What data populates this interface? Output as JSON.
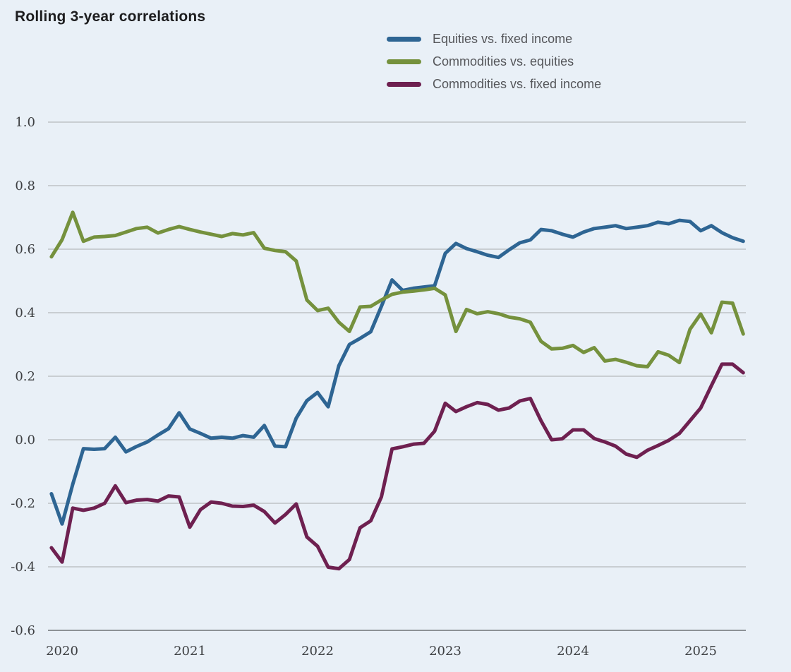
{
  "chart_data": {
    "type": "line",
    "title": "Rolling 3-year correlations",
    "background_color": "#e9f0f7",
    "gridline_color": "#a9abad",
    "axis_line_color": "#6f7276",
    "grid": true,
    "legend_position": "top-center-inside",
    "x_axis": {
      "tick_labels": [
        "2020",
        "2021",
        "2022",
        "2023",
        "2024",
        "2025"
      ],
      "tick_years": [
        2020,
        2021,
        2022,
        2023,
        2024,
        2025
      ]
    },
    "y_axis": {
      "tick_labels": [
        "1.0",
        "0.8",
        "0.6",
        "0.4",
        "0.2",
        "0.0",
        "-0.2",
        "-0.4",
        "-0.6"
      ],
      "tick_values": [
        1.0,
        0.8,
        0.6,
        0.4,
        0.2,
        0.0,
        -0.2,
        -0.4,
        -0.6
      ],
      "min": -0.6,
      "max": 1.0
    },
    "x_start_year": 2019.9167,
    "x_step_years": 0.08333,
    "series": [
      {
        "name": "Equities vs. fixed income",
        "color": "#2e6593",
        "values": [
          -0.17,
          -0.265,
          -0.14,
          -0.028,
          -0.03,
          -0.028,
          0.008,
          -0.038,
          -0.021,
          -0.007,
          0.015,
          0.035,
          0.085,
          0.034,
          0.02,
          0.005,
          0.008,
          0.005,
          0.013,
          0.008,
          0.045,
          -0.02,
          -0.022,
          0.068,
          0.123,
          0.149,
          0.104,
          0.233,
          0.3,
          0.319,
          0.34,
          0.42,
          0.503,
          0.47,
          0.477,
          0.481,
          0.485,
          0.587,
          0.618,
          0.602,
          0.592,
          0.581,
          0.574,
          0.598,
          0.62,
          0.629,
          0.662,
          0.658,
          0.647,
          0.638,
          0.654,
          0.665,
          0.669,
          0.674,
          0.665,
          0.669,
          0.674,
          0.685,
          0.68,
          0.691,
          0.687,
          0.658,
          0.674,
          0.652,
          0.636,
          0.625
        ]
      },
      {
        "name": "Commodities vs. equities",
        "color": "#75913d",
        "values": [
          0.576,
          0.63,
          0.716,
          0.625,
          0.638,
          0.64,
          0.643,
          0.654,
          0.665,
          0.669,
          0.651,
          0.662,
          0.671,
          0.662,
          0.654,
          0.647,
          0.64,
          0.649,
          0.645,
          0.652,
          0.603,
          0.596,
          0.592,
          0.563,
          0.44,
          0.407,
          0.414,
          0.37,
          0.341,
          0.418,
          0.42,
          0.44,
          0.458,
          0.465,
          0.468,
          0.472,
          0.477,
          0.456,
          0.341,
          0.41,
          0.397,
          0.403,
          0.397,
          0.386,
          0.381,
          0.37,
          0.31,
          0.286,
          0.288,
          0.297,
          0.275,
          0.29,
          0.248,
          0.253,
          0.244,
          0.233,
          0.23,
          0.277,
          0.266,
          0.243,
          0.348,
          0.396,
          0.337,
          0.433,
          0.43,
          0.333
        ]
      },
      {
        "name": "Commodities vs. fixed income",
        "color": "#6e2050",
        "values": [
          -0.34,
          -0.385,
          -0.215,
          -0.222,
          -0.215,
          -0.2,
          -0.145,
          -0.198,
          -0.19,
          -0.188,
          -0.193,
          -0.177,
          -0.18,
          -0.275,
          -0.22,
          -0.196,
          -0.2,
          -0.209,
          -0.21,
          -0.206,
          -0.226,
          -0.262,
          -0.235,
          -0.202,
          -0.306,
          -0.335,
          -0.401,
          -0.406,
          -0.377,
          -0.277,
          -0.255,
          -0.18,
          -0.029,
          -0.022,
          -0.014,
          -0.011,
          0.027,
          0.115,
          0.089,
          0.104,
          0.117,
          0.111,
          0.093,
          0.1,
          0.122,
          0.13,
          0.06,
          0.0,
          0.003,
          0.031,
          0.031,
          0.004,
          -0.007,
          -0.02,
          -0.045,
          -0.055,
          -0.033,
          -0.018,
          -0.002,
          0.02,
          0.06,
          0.1,
          0.17,
          0.238,
          0.238,
          0.211
        ]
      }
    ]
  }
}
